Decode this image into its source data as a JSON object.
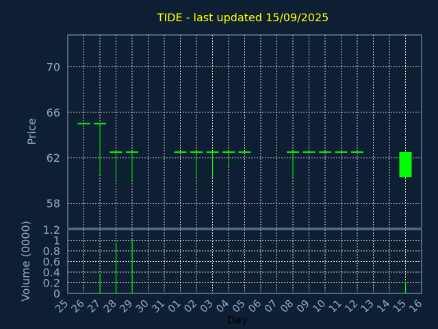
{
  "title": "TIDE - last updated 15/09/2025",
  "colors": {
    "background": "#0f1f33",
    "text": "#8fa8c8",
    "title": "#ffff00",
    "up": "#00ff00",
    "grid": "#d8d8d8"
  },
  "chart_data": [
    {
      "type": "candlestick",
      "ylabel": "Price",
      "ylim": [
        55.8,
        72.8
      ],
      "yticks": [
        58,
        62,
        66,
        70
      ],
      "ytick_labels": [
        "58",
        "62",
        "66",
        "70"
      ],
      "grid": true,
      "candles": [
        {
          "day": 1,
          "open": 65,
          "high": 65,
          "low": 65,
          "close": 65
        },
        {
          "day": 2,
          "open": 65,
          "high": 65,
          "low": 60.5,
          "close": 65
        },
        {
          "day": 3,
          "open": 62.5,
          "high": 62.5,
          "low": 60,
          "close": 62.5
        },
        {
          "day": 4,
          "open": 62.5,
          "high": 62.5,
          "low": 60,
          "close": 62.5
        },
        {
          "day": 7,
          "open": 62.5,
          "high": 62.5,
          "low": 62.5,
          "close": 62.5
        },
        {
          "day": 8,
          "open": 62.5,
          "high": 62.5,
          "low": 60.2,
          "close": 62.5
        },
        {
          "day": 9,
          "open": 62.5,
          "high": 62.5,
          "low": 60.2,
          "close": 62.5
        },
        {
          "day": 10,
          "open": 62.5,
          "high": 62.5,
          "low": 61.2,
          "close": 62.5
        },
        {
          "day": 11,
          "open": 62.5,
          "high": 62.5,
          "low": 62.5,
          "close": 62.5
        },
        {
          "day": 14,
          "open": 62.5,
          "high": 62.5,
          "low": 60.2,
          "close": 62.5
        },
        {
          "day": 15,
          "open": 62.5,
          "high": 62.5,
          "low": 62.5,
          "close": 62.5
        },
        {
          "day": 16,
          "open": 62.5,
          "high": 62.5,
          "low": 62.5,
          "close": 62.5
        },
        {
          "day": 17,
          "open": 62.5,
          "high": 62.5,
          "low": 62.5,
          "close": 62.5
        },
        {
          "day": 18,
          "open": 62.5,
          "high": 62.5,
          "low": 62.5,
          "close": 62.5
        },
        {
          "day": 21,
          "open": 60.3,
          "high": 62.5,
          "low": 60.3,
          "close": 62.5
        }
      ]
    },
    {
      "type": "bar",
      "xlabel": "Day",
      "ylabel": "Volume (0000)",
      "ylim": [
        0,
        1.2
      ],
      "yticks": [
        0,
        0.2,
        0.4,
        0.6,
        0.8,
        1,
        1.2
      ],
      "ytick_labels": [
        "0",
        "0.2",
        "0.4",
        "0.6",
        "0.8",
        "1",
        "1.2"
      ],
      "xlim": [
        0,
        22
      ],
      "x_ticks": [
        0,
        1,
        2,
        3,
        4,
        5,
        6,
        7,
        8,
        9,
        10,
        11,
        12,
        13,
        14,
        15,
        16,
        17,
        18,
        19,
        20,
        21,
        22
      ],
      "x_tick_labels": [
        "25",
        "26",
        "27",
        "28",
        "29",
        "30",
        "31",
        "01",
        "02",
        "03",
        "04",
        "05",
        "06",
        "07",
        "08",
        "09",
        "10",
        "11",
        "12",
        "13",
        "14",
        "15",
        "16"
      ],
      "grid": true,
      "volumes": [
        {
          "day": 1,
          "value": 0
        },
        {
          "day": 2,
          "value": 0.36
        },
        {
          "day": 3,
          "value": 0.95
        },
        {
          "day": 4,
          "value": 1.02
        },
        {
          "day": 7,
          "value": 0
        },
        {
          "day": 8,
          "value": 0
        },
        {
          "day": 9,
          "value": 0
        },
        {
          "day": 10,
          "value": 0
        },
        {
          "day": 11,
          "value": 0
        },
        {
          "day": 14,
          "value": 0
        },
        {
          "day": 15,
          "value": 0
        },
        {
          "day": 16,
          "value": 0
        },
        {
          "day": 17,
          "value": 0
        },
        {
          "day": 18,
          "value": 0
        },
        {
          "day": 21,
          "value": 0.22
        }
      ]
    }
  ]
}
